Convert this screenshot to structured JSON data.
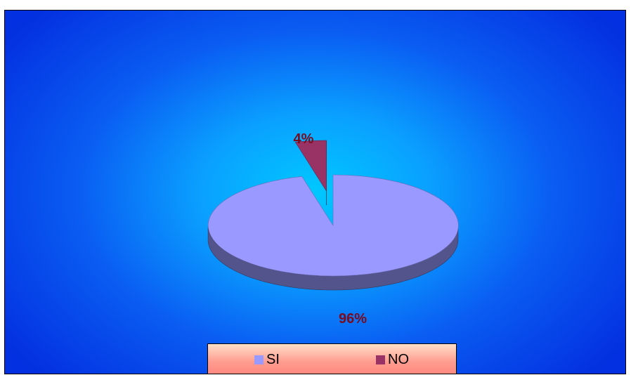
{
  "chart_data": {
    "type": "pie",
    "title": "",
    "three_d": true,
    "exploded_slice": "NO",
    "categories": [
      "SI",
      "NO"
    ],
    "values": [
      96,
      4
    ],
    "data_labels": [
      "96%",
      "4%"
    ],
    "colors": [
      "#9999ff",
      "#993366"
    ],
    "legend": {
      "placement": "bottom",
      "entries": [
        "SI",
        "NO"
      ]
    }
  },
  "colors": {
    "background_center": "#00c8ff",
    "background_edge": "#0330e0",
    "label_text": "#7a0a1c",
    "legend_top": "#ffe0c8",
    "legend_bottom": "#ff8a82"
  }
}
